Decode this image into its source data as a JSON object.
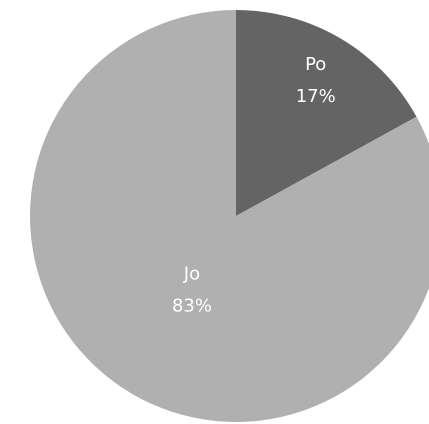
{
  "chart_data": {
    "type": "pie",
    "categories": [
      "Po",
      "Jo"
    ],
    "values": [
      17,
      83
    ],
    "value_labels": [
      "17%",
      "83%"
    ],
    "colors": [
      "#646464",
      "#b0b0b0"
    ]
  }
}
